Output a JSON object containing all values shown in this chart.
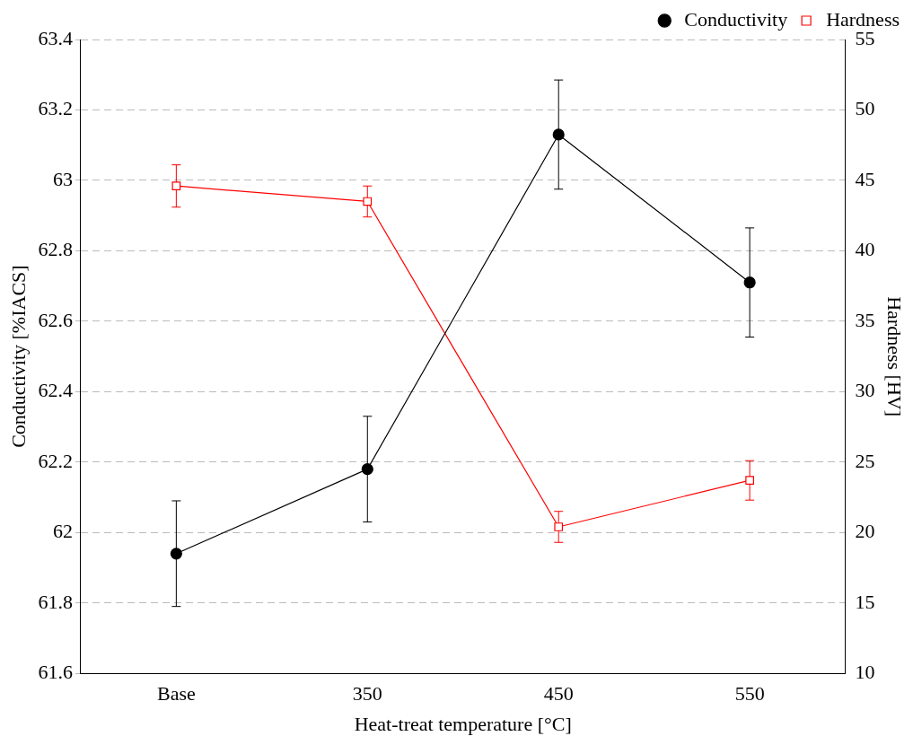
{
  "chart_data": {
    "type": "line",
    "categories": [
      "Base",
      "350",
      "450",
      "550"
    ],
    "xlabel": "Heat-treat temperature [°C]",
    "ylabel": "Conductivity [%IACS]",
    "y2label": "Hardness [HV]",
    "series": [
      {
        "name": "Conductivity",
        "color": "#000000",
        "marker": "circle",
        "values": [
          61.94,
          62.18,
          63.13,
          62.71
        ],
        "errors": [
          0.15,
          0.15,
          0.155,
          0.155
        ]
      },
      {
        "name": "Hardness",
        "color": "#ff0000",
        "marker": "square",
        "axis": "y2",
        "values": [
          44.6,
          43.5,
          20.4,
          23.7
        ],
        "errors": [
          1.5,
          1.1,
          1.1,
          1.4
        ]
      }
    ],
    "ylim": [
      61.6,
      63.4
    ],
    "yticks": [
      61.6,
      61.8,
      62,
      62.2,
      62.4,
      62.6,
      62.8,
      63,
      63.2,
      63.4
    ],
    "y2lim": [
      10,
      55
    ],
    "y2ticks": [
      10,
      15,
      20,
      25,
      30,
      35,
      40,
      45,
      50,
      55
    ],
    "grid": "y",
    "line_style": "solid",
    "legend": "top right"
  }
}
